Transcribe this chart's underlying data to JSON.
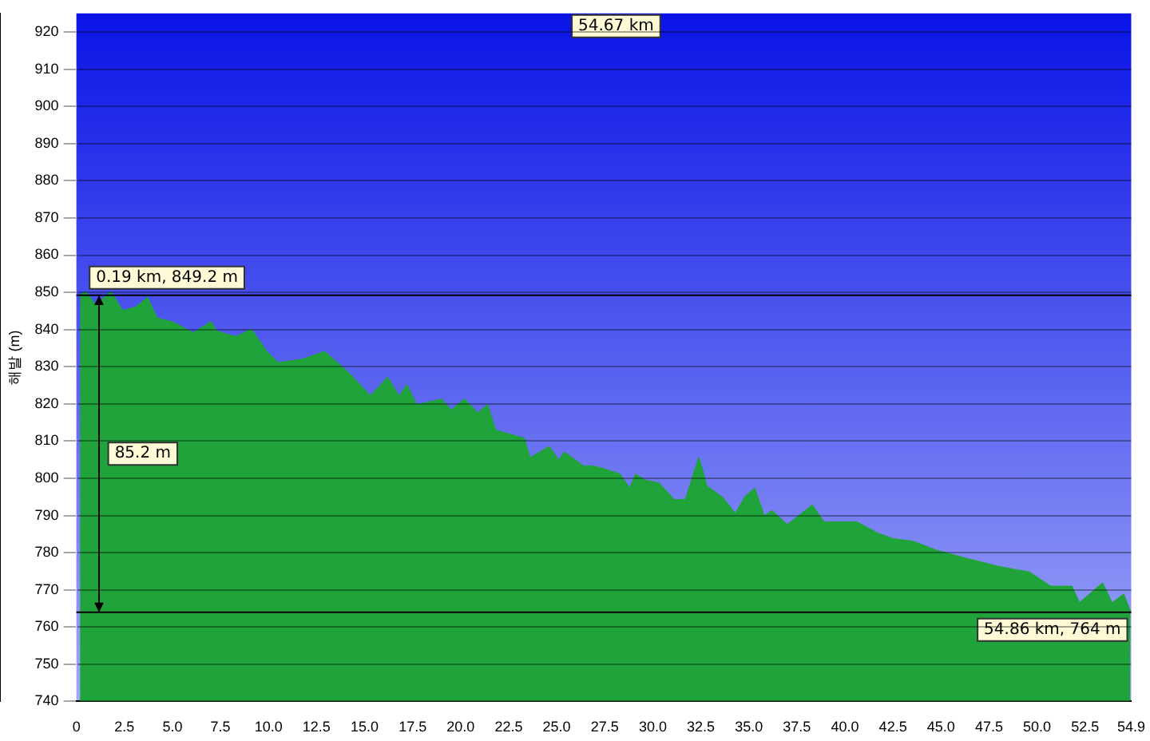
{
  "chart_data": {
    "type": "area",
    "ylabel": "해발 (m)",
    "x": [
      0.19,
      0.5,
      1.0,
      1.8,
      2.4,
      3.1,
      3.7,
      4.2,
      5.0,
      6.1,
      7.0,
      7.3,
      8.3,
      9.1,
      9.9,
      10.5,
      11.8,
      12.9,
      13.8,
      14.3,
      15.3,
      16.2,
      16.8,
      17.2,
      17.7,
      19.0,
      19.5,
      20.2,
      20.9,
      21.4,
      21.8,
      23.3,
      23.6,
      24.6,
      25.1,
      25.4,
      26.4,
      26.9,
      27.5,
      28.3,
      28.8,
      29.1,
      29.6,
      30.3,
      31.1,
      31.7,
      32.4,
      32.8,
      33.6,
      34.3,
      34.8,
      35.3,
      35.8,
      36.2,
      37.0,
      38.3,
      38.9,
      40.6,
      41.7,
      42.5,
      43.6,
      44.7,
      46.3,
      48.0,
      49.6,
      50.7,
      51.8,
      52.2,
      53.4,
      53.9,
      54.5,
      54.86
    ],
    "series": [
      {
        "color": "#1fa33a",
        "values": [
          849.2,
          850,
          846.5,
          850,
          845,
          846,
          848.5,
          843,
          842,
          839,
          842,
          839.5,
          838,
          840,
          834,
          831,
          832,
          834,
          830,
          827.6,
          822,
          827,
          821.9,
          825,
          819.7,
          821.2,
          818.2,
          821.2,
          817.4,
          819.7,
          812.9,
          810.7,
          805.4,
          808.4,
          804.7,
          806.9,
          803.2,
          803.2,
          802.4,
          801,
          797.2,
          801,
          799.4,
          798.7,
          794.2,
          794.2,
          805.4,
          797.9,
          794.9,
          790.4,
          794.9,
          797.2,
          789.7,
          791.2,
          787.4,
          792.7,
          788.2,
          788.2,
          785.2,
          783.7,
          782.9,
          780.7,
          778.4,
          776.2,
          774.7,
          770.9,
          770.9,
          766.4,
          771.7,
          766.4,
          768.7,
          764
        ]
      }
    ],
    "xlim": [
      0,
      54.9
    ],
    "xticks": [
      0,
      {
        "value": 2.5,
        "label": "2.5"
      },
      {
        "value": 5,
        "label": "5.0"
      },
      {
        "value": 7.5,
        "label": "7.5"
      },
      {
        "value": 10,
        "label": "10.0"
      },
      {
        "value": 12.5,
        "label": "12.5"
      },
      {
        "value": 15,
        "label": "15.0"
      },
      {
        "value": 17.5,
        "label": "17.5"
      },
      {
        "value": 20,
        "label": "20.0"
      },
      {
        "value": 22.5,
        "label": "22.5"
      },
      {
        "value": 25,
        "label": "25.0"
      },
      {
        "value": 27.5,
        "label": "27.5"
      },
      {
        "value": 30,
        "label": "30.0"
      },
      {
        "value": 32.5,
        "label": "32.5"
      },
      {
        "value": 35,
        "label": "35.0"
      },
      {
        "value": 37.5,
        "label": "37.5"
      },
      {
        "value": 40,
        "label": "40.0"
      },
      {
        "value": 42.5,
        "label": "42.5"
      },
      {
        "value": 45,
        "label": "45.0"
      },
      {
        "value": 47.5,
        "label": "47.5"
      },
      {
        "value": 50,
        "label": "50.0"
      },
      {
        "value": 52.5,
        "label": "52.5"
      },
      54.9
    ],
    "ylim": [
      740,
      925
    ],
    "yticks": [
      740,
      750,
      760,
      770,
      780,
      790,
      800,
      810,
      820,
      830,
      840,
      850,
      860,
      870,
      880,
      890,
      900,
      910,
      920
    ],
    "grid": "y",
    "legend": false,
    "ref_lines": [
      {
        "axis": "y",
        "value": 849.2,
        "color": "#000000"
      },
      {
        "axis": "y",
        "value": 764,
        "color": "#000000"
      }
    ],
    "annotations": [
      {
        "text": "0.19 km, 849.2 m",
        "x": 0.19,
        "y": 849.2
      },
      {
        "text": "54.86 km, 764 m",
        "x": 54.86,
        "y": 764
      },
      "85.2 m",
      "54.67 km"
    ]
  }
}
